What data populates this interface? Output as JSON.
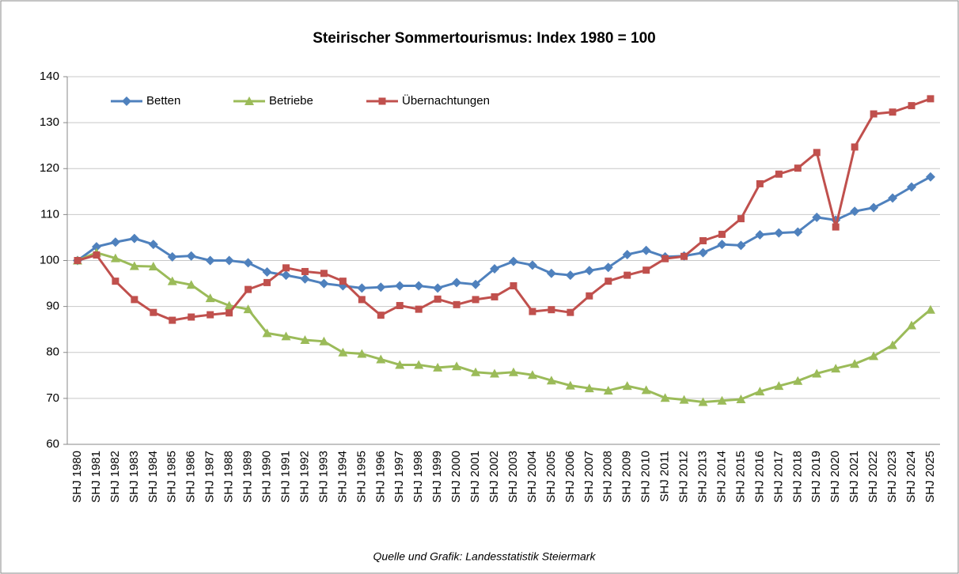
{
  "chart_data": {
    "type": "line",
    "title": "Steirischer Sommertourismus: Index 1980 = 100",
    "source": "Quelle und Grafik: Landesstatistik Steiermark",
    "categories": [
      "SHJ 1980",
      "SHJ 1981",
      "SHJ 1982",
      "SHJ 1983",
      "SHJ 1984",
      "SHJ 1985",
      "SHJ 1986",
      "SHJ 1987",
      "SHJ 1988",
      "SHJ 1989",
      "SHJ 1990",
      "SHJ 1991",
      "SHJ 1992",
      "SHJ 1993",
      "SHJ 1994",
      "SHJ 1995",
      "SHJ 1996",
      "SHJ 1997",
      "SHJ 1998",
      "SHJ 1999",
      "SHJ 2000",
      "SHJ 2001",
      "SHJ 2002",
      "SHJ 2003",
      "SHJ 2004",
      "SHJ 2005",
      "SHJ 2006",
      "SHJ 2007",
      "SHJ 2008",
      "SHJ 2009",
      "SHJ 2010",
      "SHJ 2011",
      "SHJ 2012",
      "SHJ 2013",
      "SHJ 2014",
      "SHJ 2015",
      "SHJ 2016",
      "SHJ 2017",
      "SHJ 2018",
      "SHJ 2019",
      "SHJ 2020",
      "SHJ 2021",
      "SHJ 2022",
      "SHJ 2023",
      "SHJ 2024",
      "SHJ 2025"
    ],
    "series": [
      {
        "name": "Betten",
        "color": "#4f81bd",
        "marker": "diamond",
        "values": [
          100,
          103,
          104,
          104.8,
          103.5,
          100.8,
          101,
          100,
          100,
          99.5,
          97.5,
          96.8,
          96,
          95,
          94.5,
          94,
          94.2,
          94.5,
          94.5,
          94,
          95.2,
          94.8,
          98.2,
          99.8,
          99,
          97.2,
          96.8,
          97.8,
          98.5,
          101.3,
          102.2,
          100.8,
          101,
          101.7,
          103.5,
          103.3,
          105.6,
          106,
          106.2,
          109.4,
          108.8,
          110.7,
          111.5,
          113.6,
          116,
          118.2
        ]
      },
      {
        "name": "Betriebe",
        "color": "#9bbb59",
        "marker": "triangle",
        "values": [
          100,
          101.7,
          100.5,
          98.8,
          98.7,
          95.5,
          94.7,
          91.8,
          90.2,
          89.4,
          84.2,
          83.5,
          82.7,
          82.4,
          80,
          79.7,
          78.5,
          77.3,
          77.3,
          76.7,
          77,
          75.7,
          75.4,
          75.7,
          75.1,
          73.9,
          72.8,
          72.2,
          71.7,
          72.7,
          71.8,
          70.1,
          69.7,
          69.2,
          69.5,
          69.8,
          71.5,
          72.7,
          73.8,
          75.4,
          76.5,
          77.5,
          79.2,
          81.6,
          85.9,
          89.3
        ]
      },
      {
        "name": "Übernachtungen",
        "color": "#c0504d",
        "marker": "square",
        "values": [
          100,
          101.2,
          95.5,
          91.5,
          88.7,
          87,
          87.7,
          88.2,
          88.6,
          93.7,
          95.2,
          98.4,
          97.6,
          97.2,
          95.5,
          91.5,
          88.1,
          90.2,
          89.4,
          91.6,
          90.4,
          91.5,
          92.1,
          94.5,
          88.9,
          89.3,
          88.7,
          92.3,
          95.5,
          96.8,
          97.9,
          100.4,
          100.9,
          104.3,
          105.7,
          109.1,
          116.7,
          118.8,
          120.1,
          123.5,
          107.3,
          124.7,
          131.9,
          132.3,
          133.7,
          135.2
        ]
      }
    ],
    "ylim": [
      60,
      140
    ],
    "yticks": [
      60,
      70,
      80,
      90,
      100,
      110,
      120,
      130,
      140
    ],
    "grid": true,
    "legend": "top-left"
  }
}
